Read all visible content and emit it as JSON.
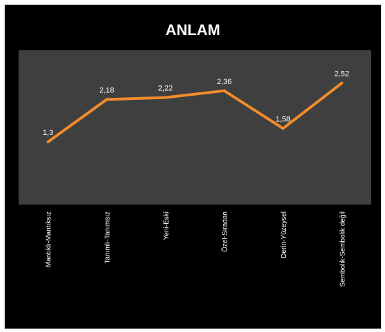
{
  "colors": {
    "background": "#000000",
    "plot_area": "#3f3f3f",
    "line": "#f28c2b",
    "text": "#ffffff"
  },
  "chart_data": {
    "type": "line",
    "title": "ANLAM",
    "categories": [
      "Mantıklı-Mantıksız",
      "Tanımlı-Tanımsız",
      "Yeni-Eski",
      "Özel-Sıradan",
      "Derin-Yüzeysel",
      "Sembolik-Sembolik değil"
    ],
    "values": [
      1.3,
      2.18,
      2.22,
      2.36,
      1.58,
      2.52
    ],
    "data_labels": [
      "1,3",
      "2,18",
      "2,22",
      "2,36",
      "1,58",
      "2,52"
    ],
    "ylim": [
      0,
      3.2
    ],
    "grid": false,
    "legend": "none"
  }
}
